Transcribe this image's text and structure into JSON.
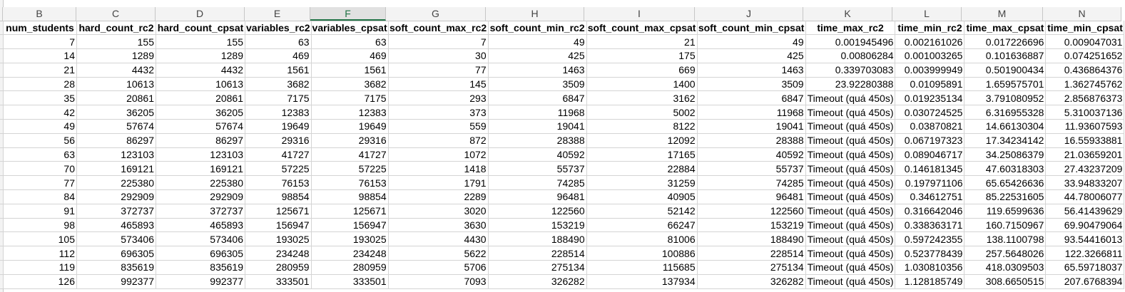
{
  "column_letters": [
    "B",
    "C",
    "D",
    "E",
    "F",
    "G",
    "H",
    "I",
    "J",
    "K",
    "L",
    "M",
    "N"
  ],
  "headers": [
    "num_students",
    "hard_count_rc2",
    "hard_count_cpsat",
    "variables_rc2",
    "variables_cpsat",
    "soft_count_max_rc2",
    "soft_count_min_rc2",
    "soft_count_max_cpsat",
    "soft_count_min_cpsat",
    "time_max_rc2",
    "time_min_rc2",
    "time_max_cpsat",
    "time_min_cpsat"
  ],
  "rows": [
    [
      "7",
      "155",
      "155",
      "63",
      "63",
      "7",
      "49",
      "21",
      "49",
      "0.001945496",
      "0.002161026",
      "0.017226696",
      "0.009047031"
    ],
    [
      "14",
      "1289",
      "1289",
      "469",
      "469",
      "30",
      "425",
      "175",
      "425",
      "0.00806284",
      "0.001003265",
      "0.101636887",
      "0.074251652"
    ],
    [
      "21",
      "4432",
      "4432",
      "1561",
      "1561",
      "77",
      "1463",
      "669",
      "1463",
      "0.339703083",
      "0.003999949",
      "0.501900434",
      "0.436864376"
    ],
    [
      "28",
      "10613",
      "10613",
      "3682",
      "3682",
      "145",
      "3509",
      "1400",
      "3509",
      "23.92280388",
      "0.01095891",
      "1.659575701",
      "1.362745762"
    ],
    [
      "35",
      "20861",
      "20861",
      "7175",
      "7175",
      "293",
      "6847",
      "3162",
      "6847",
      "Timeout (quá 450s)",
      "0.019235134",
      "3.791080952",
      "2.856876373"
    ],
    [
      "42",
      "36205",
      "36205",
      "12383",
      "12383",
      "373",
      "11968",
      "5002",
      "11968",
      "Timeout (quá 450s)",
      "0.030724525",
      "6.316955328",
      "5.310037136"
    ],
    [
      "49",
      "57674",
      "57674",
      "19649",
      "19649",
      "559",
      "19041",
      "8122",
      "19041",
      "Timeout (quá 450s)",
      "0.03870821",
      "14.66130304",
      "11.93607593"
    ],
    [
      "56",
      "86297",
      "86297",
      "29316",
      "29316",
      "872",
      "28388",
      "12092",
      "28388",
      "Timeout (quá 450s)",
      "0.067197323",
      "17.34234142",
      "16.55933881"
    ],
    [
      "63",
      "123103",
      "123103",
      "41727",
      "41727",
      "1072",
      "40592",
      "17165",
      "40592",
      "Timeout (quá 450s)",
      "0.089046717",
      "34.25086379",
      "21.03659201"
    ],
    [
      "70",
      "169121",
      "169121",
      "57225",
      "57225",
      "1418",
      "55737",
      "22884",
      "55737",
      "Timeout (quá 450s)",
      "0.146181345",
      "47.60318303",
      "27.43237209"
    ],
    [
      "77",
      "225380",
      "225380",
      "76153",
      "76153",
      "1791",
      "74285",
      "31259",
      "74285",
      "Timeout (quá 450s)",
      "0.197971106",
      "65.65426636",
      "33.94833207"
    ],
    [
      "84",
      "292909",
      "292909",
      "98854",
      "98854",
      "2289",
      "96481",
      "40905",
      "96481",
      "Timeout (quá 450s)",
      "0.34612751",
      "85.22531605",
      "44.78006077"
    ],
    [
      "91",
      "372737",
      "372737",
      "125671",
      "125671",
      "3020",
      "122560",
      "52142",
      "122560",
      "Timeout (quá 450s)",
      "0.316642046",
      "119.6599636",
      "56.41439629"
    ],
    [
      "98",
      "465893",
      "465893",
      "156947",
      "156947",
      "3630",
      "153219",
      "66247",
      "153219",
      "Timeout (quá 450s)",
      "0.338363171",
      "160.7150967",
      "69.90479064"
    ],
    [
      "105",
      "573406",
      "573406",
      "193025",
      "193025",
      "4430",
      "188490",
      "81006",
      "188490",
      "Timeout (quá 450s)",
      "0.597242355",
      "138.1100798",
      "93.54416013"
    ],
    [
      "112",
      "696305",
      "696305",
      "234248",
      "234248",
      "5622",
      "228514",
      "100886",
      "228514",
      "Timeout (quá 450s)",
      "0.523778439",
      "257.5648026",
      "122.3266811"
    ],
    [
      "119",
      "835619",
      "835619",
      "280959",
      "280959",
      "5706",
      "275134",
      "115685",
      "275134",
      "Timeout (quá 450s)",
      "1.030810356",
      "418.0309503",
      "65.59718037"
    ],
    [
      "126",
      "992377",
      "992377",
      "333501",
      "333501",
      "7093",
      "326282",
      "137934",
      "326282",
      "Timeout (quá 450s)",
      "1.128185749",
      "308.6650515",
      "207.6768394"
    ]
  ]
}
